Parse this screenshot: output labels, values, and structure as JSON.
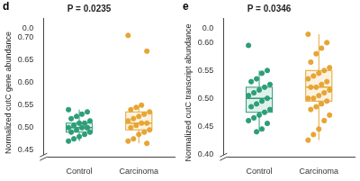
{
  "chart_data": [
    {
      "type": "box",
      "panel": "d",
      "title": "P = 0.0235",
      "y_label": "Normalized cutC gene abundance",
      "categories": [
        "Control",
        "Carcinoma"
      ],
      "colors": [
        "#2e9e78",
        "#e6a534"
      ],
      "values": [
        [
          0.54,
          0.535,
          0.53,
          0.525,
          0.52,
          0.515,
          0.51,
          0.51,
          0.505,
          0.5,
          0.5,
          0.5,
          0.495,
          0.49,
          0.49,
          0.485,
          0.48,
          0.475,
          0.47,
          0.5
        ],
        [
          0.705,
          0.67,
          0.55,
          0.545,
          0.54,
          0.535,
          0.53,
          0.525,
          0.52,
          0.515,
          0.51,
          0.51,
          0.505,
          0.5,
          0.495,
          0.49,
          0.485,
          0.475,
          0.47,
          0.465
        ]
      ],
      "boxes": [
        {
          "q1": 0.49,
          "median": 0.5,
          "q3": 0.51,
          "whisker_low": 0.47,
          "whisker_high": 0.54
        },
        {
          "q1": 0.495,
          "median": 0.51,
          "q3": 0.535,
          "whisker_low": 0.465,
          "whisker_high": 0.55
        }
      ],
      "ylim": [
        0.435,
        0.72
      ],
      "yticks": [
        {
          "value": 0.45,
          "label": "0.45"
        },
        {
          "value": 0.5,
          "label": "0.50"
        },
        {
          "value": 0.55,
          "label": "0.55"
        },
        {
          "value": 0.6,
          "label": "0.60"
        },
        {
          "value": 0.65,
          "label": "0.65"
        },
        {
          "value": 0.7,
          "label": "0.70"
        }
      ],
      "ylim_low": [
        0,
        0.02
      ],
      "yticks_low": [
        {
          "value": 0,
          "label": "0.0"
        }
      ],
      "grid": false
    },
    {
      "type": "box",
      "panel": "e",
      "title": "P = 0.0346",
      "y_label": "Normalized cutC transcript abundance",
      "categories": [
        "Control",
        "Carcinoma"
      ],
      "colors": [
        "#2e9e78",
        "#e6a534"
      ],
      "values": [
        [
          0.595,
          0.55,
          0.545,
          0.535,
          0.53,
          0.525,
          0.52,
          0.515,
          0.51,
          0.505,
          0.5,
          0.495,
          0.49,
          0.485,
          0.48,
          0.475,
          0.47,
          0.465,
          0.46,
          0.455,
          0.445,
          0.44
        ],
        [
          0.615,
          0.6,
          0.59,
          0.58,
          0.565,
          0.555,
          0.55,
          0.545,
          0.54,
          0.535,
          0.53,
          0.525,
          0.52,
          0.52,
          0.515,
          0.51,
          0.505,
          0.5,
          0.5,
          0.495,
          0.49,
          0.485,
          0.48,
          0.47,
          0.46,
          0.445,
          0.435,
          0.425
        ]
      ],
      "boxes": [
        {
          "q1": 0.475,
          "median": 0.5,
          "q3": 0.52,
          "whisker_low": 0.44,
          "whisker_high": 0.55
        },
        {
          "q1": 0.495,
          "median": 0.52,
          "q3": 0.55,
          "whisker_low": 0.425,
          "whisker_high": 0.615
        }
      ],
      "ylim": [
        0.395,
        0.625
      ],
      "yticks": [
        {
          "value": 0.4,
          "label": "0.40"
        },
        {
          "value": 0.45,
          "label": "0.45"
        },
        {
          "value": 0.5,
          "label": "0.50"
        },
        {
          "value": 0.55,
          "label": "0.55"
        },
        {
          "value": 0.6,
          "label": "0.60"
        }
      ],
      "ylim_low": [
        0,
        0.02
      ],
      "yticks_low": [
        {
          "value": 0,
          "label": "0.0"
        }
      ],
      "grid": false
    }
  ]
}
